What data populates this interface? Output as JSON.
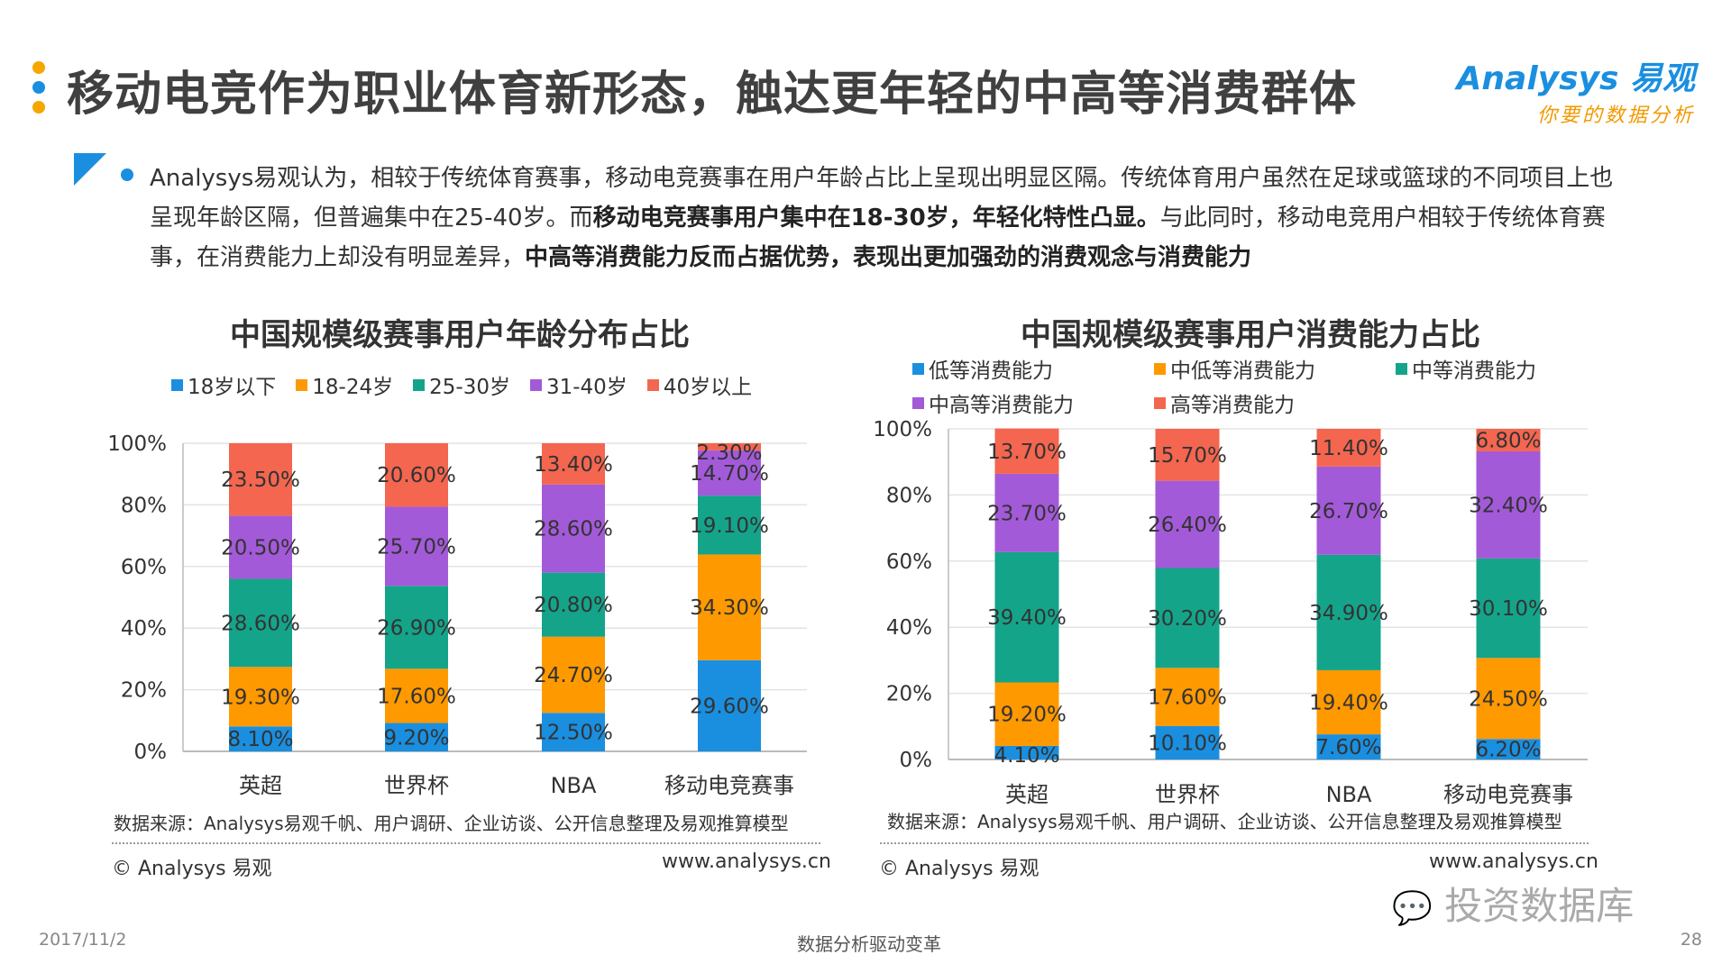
{
  "header": {
    "title": "移动电竞作为职业体育新形态，触达更年轻的中高等消费群体",
    "logo_main": "Analysys 易观",
    "logo_sub": "你要的数据分析"
  },
  "summary": {
    "p1": "Analysys易观认为，相较于传统体育赛事，移动电竞赛事在用户年龄占比上呈现出明显区隔。传统体育用户虽然在足球或篮球的不同项目上也呈现年龄区隔，但普遍集中在25-40岁。而",
    "b1": "移动电竞赛事用户集中在18-30岁，年轻化特性凸显。",
    "p2": "与此同时，移动电竞用户相较于传统体育赛事，在消费能力上却没有明显差异，",
    "b2": "中高等消费能力反而占据优势，表现出更加强劲的消费观念与消费能力"
  },
  "colors": {
    "blue": "#1a8fe0",
    "orange": "#ff9900",
    "teal": "#14a48a",
    "purple": "#a35ad8",
    "red": "#f4664f"
  },
  "chart_data": [
    {
      "type": "bar",
      "stacked": true,
      "title": "中国规模级赛事用户年龄分布占比",
      "categories": [
        "英超",
        "世界杯",
        "NBA",
        "移动电竞赛事"
      ],
      "ylim": [
        0,
        100
      ],
      "yticks": [
        "0%",
        "20%",
        "40%",
        "60%",
        "80%",
        "100%"
      ],
      "legend_placement": "top",
      "grid": true,
      "series": [
        {
          "name": "18岁以下",
          "color": "#1a8fe0",
          "values": [
            8.1,
            9.2,
            12.5,
            29.6
          ]
        },
        {
          "name": "18-24岁",
          "color": "#ff9900",
          "values": [
            19.3,
            17.6,
            24.7,
            34.3
          ]
        },
        {
          "name": "25-30岁",
          "color": "#14a48a",
          "values": [
            28.6,
            26.9,
            20.8,
            19.1
          ]
        },
        {
          "name": "31-40岁",
          "color": "#a35ad8",
          "values": [
            20.5,
            25.7,
            28.6,
            14.7
          ]
        },
        {
          "name": "40岁以上",
          "color": "#f4664f",
          "values": [
            23.5,
            20.6,
            13.4,
            2.3
          ]
        }
      ],
      "labels": [
        [
          "8.10%",
          "9.20%",
          "12.50%",
          ""
        ],
        [
          "19.30%",
          "17.60%",
          "24.70%",
          "34.30%"
        ],
        [
          "28.60%",
          "26.90%",
          "20.80%",
          "19.10%"
        ],
        [
          "20.50%",
          "25.70%",
          "28.60%",
          "14.70%"
        ],
        [
          "23.50%",
          "20.60%",
          "13.40%",
          "2.30%"
        ]
      ],
      "extra_label": "29.60%",
      "source": "数据来源：Analysys易观千帆、用户调研、企业访谈、公开信息整理及易观推算模型",
      "copyright": "© Analysys 易观",
      "url": "www.analysys.cn"
    },
    {
      "type": "bar",
      "stacked": true,
      "title": "中国规模级赛事用户消费能力占比",
      "categories": [
        "英超",
        "世界杯",
        "NBA",
        "移动电竞赛事"
      ],
      "ylim": [
        0,
        100
      ],
      "yticks": [
        "0%",
        "20%",
        "40%",
        "60%",
        "80%",
        "100%"
      ],
      "legend_placement": "top",
      "grid": true,
      "series": [
        {
          "name": "低等消费能力",
          "color": "#1a8fe0",
          "values": [
            4.1,
            10.1,
            7.6,
            6.2
          ]
        },
        {
          "name": "中低等消费能力",
          "color": "#ff9900",
          "values": [
            19.2,
            17.6,
            19.4,
            24.5
          ]
        },
        {
          "name": "中等消费能力",
          "color": "#14a48a",
          "values": [
            39.4,
            30.2,
            34.9,
            30.1
          ]
        },
        {
          "name": "中高等消费能力",
          "color": "#a35ad8",
          "values": [
            23.7,
            26.4,
            26.7,
            32.4
          ]
        },
        {
          "name": "高等消费能力",
          "color": "#f4664f",
          "values": [
            13.7,
            15.7,
            11.4,
            6.8
          ]
        }
      ],
      "labels": [
        [
          "4.10%",
          "10.10%",
          "7.60%",
          "6.20%"
        ],
        [
          "19.20%",
          "17.60%",
          "19.40%",
          "24.50%"
        ],
        [
          "39.40%",
          "30.20%",
          "34.90%",
          "30.10%"
        ],
        [
          "23.70%",
          "26.40%",
          "26.70%",
          "32.40%"
        ],
        [
          "13.70%",
          "15.70%",
          "11.40%",
          "6.80%"
        ]
      ],
      "source": "数据来源：Analysys易观千帆、用户调研、企业访谈、公开信息整理及易观推算模型",
      "copyright": "© Analysys 易观",
      "url": "www.analysys.cn"
    }
  ],
  "footer": {
    "date": "2017/11/2",
    "slogan": "数据分析驱动变革",
    "page": "28",
    "watermark": "投资数据库"
  }
}
